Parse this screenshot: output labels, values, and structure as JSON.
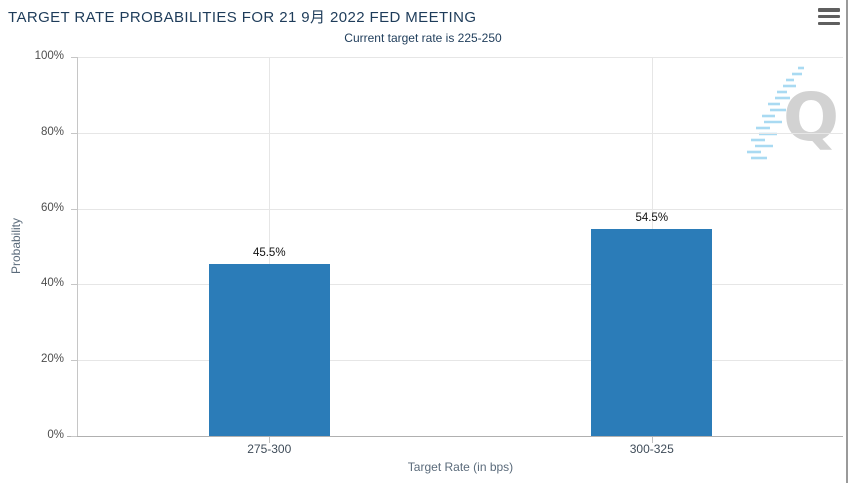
{
  "icons": {
    "menu": "hamburger-menu-icon",
    "watermark": "q-logo-watermark-icon"
  },
  "colors": {
    "bar": "#2b7cb8",
    "title_text": "#1e3c5a",
    "gridline": "#e6e6e6",
    "axis_line": "#b0b0b0",
    "watermark_gray": "#d2d2d2",
    "watermark_blue": "#a9daf2"
  },
  "chart_data": {
    "type": "bar",
    "title": "TARGET RATE PROBABILITIES FOR 21 9月 2022 FED MEETING",
    "subtitle": "Current target rate is 225-250",
    "categories": [
      "275-300",
      "300-325"
    ],
    "values": [
      45.5,
      54.5
    ],
    "data_labels": [
      "45.5%",
      "54.5%"
    ],
    "xlabel": "Target Rate (in bps)",
    "ylabel": "Probability",
    "ylim": [
      0,
      100
    ],
    "yticks": [
      0,
      20,
      40,
      60,
      80,
      100
    ],
    "ytick_labels": [
      "0%",
      "20%",
      "40%",
      "60%",
      "80%",
      "100%"
    ],
    "grid": true,
    "legend": "none"
  },
  "watermark_letter": "Q"
}
